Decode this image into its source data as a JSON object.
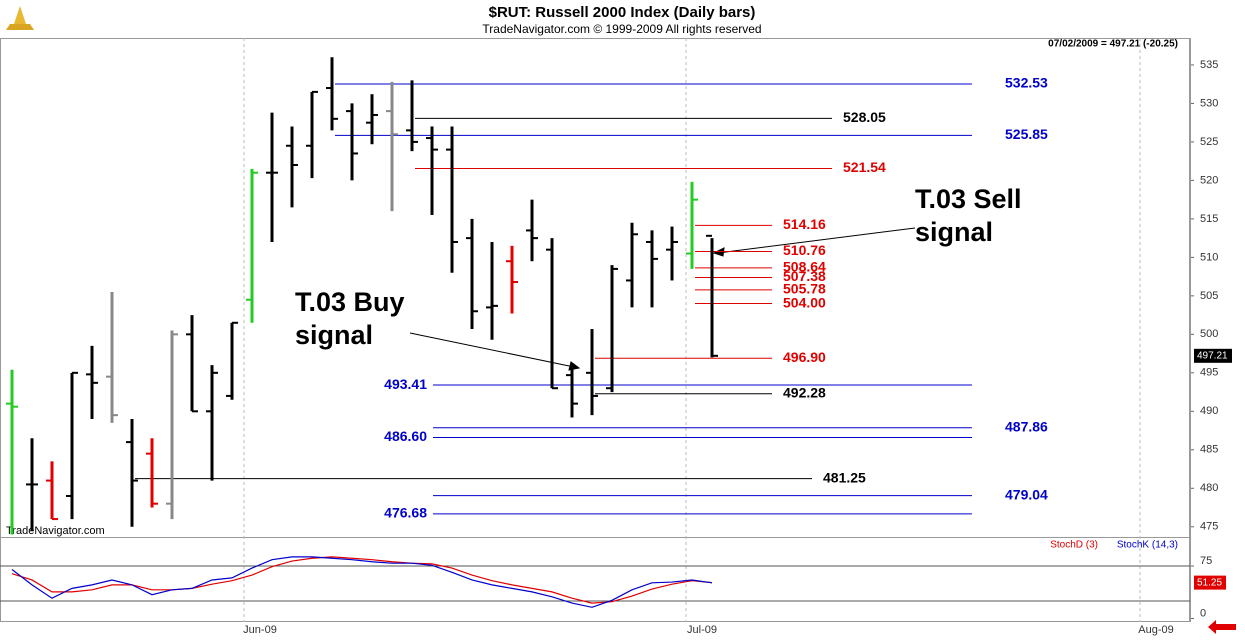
{
  "chart_data": [
    {
      "type": "ohlc",
      "title": "$RUT:  Russell 2000 Index  (Daily bars)",
      "subtitle": "TradeNavigator.com © 1999-2009 All rights reserved",
      "status": "07/02/2009 = 497.21 (-20.25)",
      "watermark": "TradeNavigator.com",
      "categories": [
        null,
        null,
        null,
        null,
        null,
        null,
        null,
        null,
        null,
        null,
        null,
        null,
        null,
        null,
        null,
        null,
        null,
        null,
        null,
        null,
        null,
        null,
        null,
        null,
        null,
        null,
        null,
        null,
        null,
        null,
        null,
        null,
        null,
        null,
        null,
        null
      ],
      "xticks": [
        {
          "value": 11.6,
          "label": "Jun-09"
        },
        {
          "value": 33.7,
          "label": "Jul-09"
        },
        {
          "value": 56.4,
          "label": "Aug-09"
        }
      ],
      "open": [
        491,
        480.5,
        481,
        479,
        494.8,
        494.5,
        486,
        484.5,
        478,
        500,
        490,
        492,
        504.5,
        521,
        524.5,
        524.5,
        532,
        529,
        527.5,
        529,
        526.5,
        525.5,
        524,
        512.5,
        503.5,
        509.5,
        513.5,
        511,
        494.7,
        495,
        493,
        507,
        512,
        511,
        510.5,
        512.8
      ],
      "high": [
        495.4,
        486.5,
        483.5,
        495,
        498.5,
        505.5,
        489,
        486.5,
        500.5,
        502.5,
        496,
        501.5,
        521.5,
        528.8,
        527,
        531.5,
        536,
        530,
        531.2,
        532.8,
        533,
        527,
        527,
        515,
        512,
        511.5,
        517.5,
        512.5,
        496,
        500.7,
        509,
        514.5,
        513.5,
        514,
        519.8,
        512.5
      ],
      "low": [
        474,
        474.5,
        476,
        476,
        489,
        488.5,
        475,
        477.5,
        476,
        490,
        481,
        491.5,
        501.5,
        512,
        516.5,
        520.3,
        526.5,
        520,
        524.7,
        516,
        523.8,
        515.5,
        508,
        500.7,
        499.3,
        502.7,
        509.5,
        493,
        489.2,
        489.5,
        492.5,
        503.5,
        503.5,
        507,
        508.5,
        497
      ],
      "close": [
        490.6,
        480.5,
        476,
        495,
        493.7,
        489.5,
        481,
        478,
        500,
        490,
        495,
        501.5,
        521,
        521,
        522,
        531.5,
        528,
        523.5,
        528.5,
        526,
        525,
        524,
        512,
        503,
        503.7,
        506.8,
        512.5,
        493,
        491,
        492,
        508.5,
        513,
        509.8,
        512,
        517.5,
        497.21
      ],
      "colors": [
        "#22cc22",
        "#000000",
        "#e00000",
        "#000000",
        "#000000",
        "#888888",
        "#000000",
        "#e00000",
        "#888888",
        "#000000",
        "#000000",
        "#000000",
        "#22cc22",
        "#000000",
        "#000000",
        "#000000",
        "#000000",
        "#000000",
        "#000000",
        "#888888",
        "#000000",
        "#000000",
        "#000000",
        "#000000",
        "#000000",
        "#e00000",
        "#000000",
        "#000000",
        "#000000",
        "#000000",
        "#000000",
        "#000000",
        "#000000",
        "#000000",
        "#22cc22",
        "#000000"
      ],
      "ylim": [
        473.8,
        538.5
      ],
      "yticks": [
        475,
        480,
        485,
        490,
        495,
        500,
        505,
        510,
        515,
        520,
        525,
        530,
        535
      ],
      "last_value": 497.21,
      "levels": [
        {
          "value": 532.53,
          "label": "532.53",
          "color": "#0000cc"
        },
        {
          "value": 528.05,
          "label": "528.05",
          "color": "#000000"
        },
        {
          "value": 525.85,
          "label": "525.85",
          "color": "#0000cc"
        },
        {
          "value": 521.54,
          "label": "521.54",
          "color": "#e00000"
        },
        {
          "value": 514.16,
          "label": "514.16",
          "color": "#e00000"
        },
        {
          "value": 510.76,
          "label": "510.76",
          "color": "#e00000"
        },
        {
          "value": 508.64,
          "label": "508.64",
          "color": "#e00000"
        },
        {
          "value": 507.38,
          "label": "507.38",
          "color": "#e00000"
        },
        {
          "value": 505.78,
          "label": "505.78",
          "color": "#e00000"
        },
        {
          "value": 504.0,
          "label": "504.00",
          "color": "#e00000"
        },
        {
          "value": 496.9,
          "label": "496.90",
          "color": "#e00000"
        },
        {
          "value": 493.41,
          "label": "493.41",
          "color": "#0000cc"
        },
        {
          "value": 492.28,
          "label": "492.28",
          "color": "#000000"
        },
        {
          "value": 487.86,
          "label": "487.86",
          "color": "#0000cc"
        },
        {
          "value": 486.6,
          "label": "486.60",
          "color": "#0000cc"
        },
        {
          "value": 481.25,
          "label": "481.25",
          "color": "#000000"
        },
        {
          "value": 479.04,
          "label": "479.04",
          "color": "#0000cc"
        },
        {
          "value": 476.68,
          "label": "476.68",
          "color": "#0000cc"
        }
      ],
      "annotations": [
        {
          "lines": [
            "T.03 Sell",
            "signal"
          ]
        },
        {
          "lines": [
            "T.03 Buy",
            "signal"
          ]
        }
      ]
    },
    {
      "type": "line",
      "ylim": [
        -5,
        112.1
      ],
      "yticks": [
        0,
        75
      ],
      "hlines": [
        25,
        75
      ],
      "last_value": 51.25,
      "series": [
        {
          "name": "StochD (3)",
          "color": "#e00000",
          "values": [
            64,
            55,
            38,
            38,
            41,
            48,
            48,
            41,
            41,
            43,
            49,
            54,
            62,
            74,
            82,
            86,
            88,
            86,
            84,
            81,
            79,
            78,
            72,
            62,
            54,
            48,
            43,
            38,
            29,
            22,
            24,
            32,
            42,
            49,
            54,
            51.25
          ]
        },
        {
          "name": "StochK (14,3)",
          "color": "#0000cc",
          "values": [
            70,
            48,
            29,
            43,
            48,
            55,
            48,
            34,
            41,
            43,
            55,
            58,
            72,
            84,
            88,
            88,
            86,
            84,
            81,
            79,
            79,
            76,
            66,
            55,
            48,
            43,
            38,
            31,
            22,
            16,
            26,
            41,
            51,
            52,
            55,
            51
          ]
        }
      ]
    }
  ]
}
